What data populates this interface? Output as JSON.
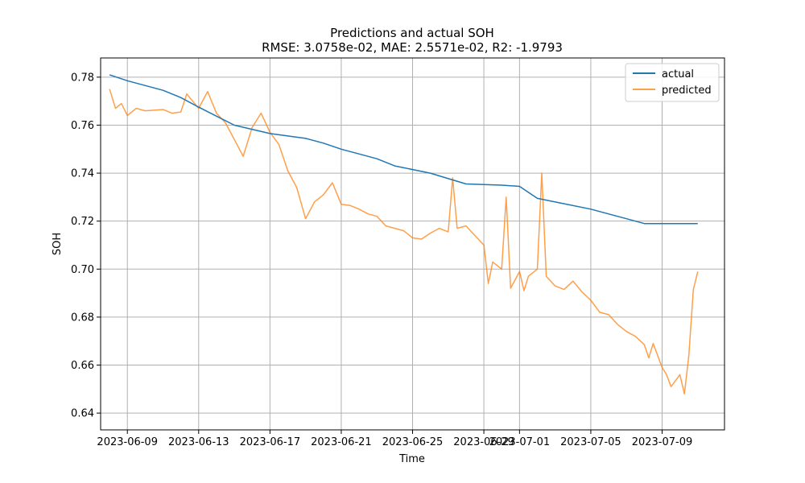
{
  "chart_data": {
    "type": "line",
    "title": "Predictions and actual SOH",
    "subtitle": "RMSE: 3.0758e-02, MAE: 2.5571e-02, R2: -1.9793",
    "xlabel": "Time",
    "ylabel": "SOH",
    "xlim": [
      "2023-06-07T12:00",
      "2023-07-12T12:00"
    ],
    "ylim": [
      0.633,
      0.788
    ],
    "grid": true,
    "legend_position": "top-right",
    "x_ticks": [
      "2023-06-09",
      "2023-06-13",
      "2023-06-17",
      "2023-06-21",
      "2023-06-25",
      "2023-06-29",
      "2023-07-01",
      "2023-07-05",
      "2023-07-09"
    ],
    "y_ticks": [
      "0.64",
      "0.66",
      "0.68",
      "0.70",
      "0.72",
      "0.74",
      "0.76",
      "0.78"
    ],
    "series": [
      {
        "name": "actual",
        "color": "#1f77b4",
        "points": [
          [
            "2023-06-08",
            0.781
          ],
          [
            "2023-06-09",
            0.7785
          ],
          [
            "2023-06-11",
            0.7745
          ],
          [
            "2023-06-12",
            0.7715
          ],
          [
            "2023-06-13",
            0.7675
          ],
          [
            "2023-06-15",
            0.76
          ],
          [
            "2023-06-17",
            0.7565
          ],
          [
            "2023-06-19",
            0.7545
          ],
          [
            "2023-06-20",
            0.7525
          ],
          [
            "2023-06-21",
            0.75
          ],
          [
            "2023-06-23",
            0.746
          ],
          [
            "2023-06-24",
            0.743
          ],
          [
            "2023-06-26",
            0.74
          ],
          [
            "2023-06-28",
            0.7355
          ],
          [
            "2023-06-30",
            0.735
          ],
          [
            "2023-07-01",
            0.7345
          ],
          [
            "2023-07-02",
            0.7295
          ],
          [
            "2023-07-05",
            0.725
          ],
          [
            "2023-07-07",
            0.721
          ],
          [
            "2023-07-08",
            0.719
          ],
          [
            "2023-07-10",
            0.719
          ],
          [
            "2023-07-11",
            0.719
          ]
        ]
      },
      {
        "name": "predicted",
        "color": "#ff7f0e",
        "points": [
          [
            "2023-06-08",
            0.775
          ],
          [
            "2023-06-08T08:00",
            0.767
          ],
          [
            "2023-06-08T16:00",
            0.769
          ],
          [
            "2023-06-09",
            0.764
          ],
          [
            "2023-06-09T12:00",
            0.767
          ],
          [
            "2023-06-10",
            0.766
          ],
          [
            "2023-06-11",
            0.7665
          ],
          [
            "2023-06-11T12:00",
            0.765
          ],
          [
            "2023-06-12",
            0.7655
          ],
          [
            "2023-06-12T08:00",
            0.773
          ],
          [
            "2023-06-12T16:00",
            0.77
          ],
          [
            "2023-06-13",
            0.767
          ],
          [
            "2023-06-13T12:00",
            0.774
          ],
          [
            "2023-06-14",
            0.765
          ],
          [
            "2023-06-14T12:00",
            0.761
          ],
          [
            "2023-06-15",
            0.754
          ],
          [
            "2023-06-15T12:00",
            0.747
          ],
          [
            "2023-06-16",
            0.759
          ],
          [
            "2023-06-16T12:00",
            0.765
          ],
          [
            "2023-06-17",
            0.757
          ],
          [
            "2023-06-17T12:00",
            0.752
          ],
          [
            "2023-06-18",
            0.741
          ],
          [
            "2023-06-18T12:00",
            0.734
          ],
          [
            "2023-06-19",
            0.721
          ],
          [
            "2023-06-19T12:00",
            0.728
          ],
          [
            "2023-06-20",
            0.731
          ],
          [
            "2023-06-20T12:00",
            0.736
          ],
          [
            "2023-06-21",
            0.727
          ],
          [
            "2023-06-21T12:00",
            0.7265
          ],
          [
            "2023-06-22",
            0.725
          ],
          [
            "2023-06-22T12:00",
            0.723
          ],
          [
            "2023-06-23",
            0.722
          ],
          [
            "2023-06-23T12:00",
            0.718
          ],
          [
            "2023-06-24",
            0.717
          ],
          [
            "2023-06-24T12:00",
            0.716
          ],
          [
            "2023-06-25",
            0.713
          ],
          [
            "2023-06-25T12:00",
            0.7125
          ],
          [
            "2023-06-26",
            0.715
          ],
          [
            "2023-06-26T12:00",
            0.717
          ],
          [
            "2023-06-27",
            0.7155
          ],
          [
            "2023-06-27T06:00",
            0.738
          ],
          [
            "2023-06-27T12:00",
            0.717
          ],
          [
            "2023-06-28",
            0.718
          ],
          [
            "2023-06-28T12:00",
            0.714
          ],
          [
            "2023-06-29",
            0.71
          ],
          [
            "2023-06-29T06:00",
            0.694
          ],
          [
            "2023-06-29T12:00",
            0.703
          ],
          [
            "2023-06-30",
            0.7
          ],
          [
            "2023-06-30T06:00",
            0.73
          ],
          [
            "2023-06-30T12:00",
            0.692
          ],
          [
            "2023-07-01",
            0.699
          ],
          [
            "2023-07-01T06:00",
            0.691
          ],
          [
            "2023-07-01T12:00",
            0.697
          ],
          [
            "2023-07-02",
            0.7
          ],
          [
            "2023-07-02T06:00",
            0.74
          ],
          [
            "2023-07-02T12:00",
            0.697
          ],
          [
            "2023-07-03",
            0.693
          ],
          [
            "2023-07-03T12:00",
            0.6915
          ],
          [
            "2023-07-04",
            0.695
          ],
          [
            "2023-07-04T12:00",
            0.6905
          ],
          [
            "2023-07-05",
            0.687
          ],
          [
            "2023-07-05T12:00",
            0.682
          ],
          [
            "2023-07-06",
            0.681
          ],
          [
            "2023-07-06T12:00",
            0.677
          ],
          [
            "2023-07-07",
            0.674
          ],
          [
            "2023-07-07T12:00",
            0.672
          ],
          [
            "2023-07-08",
            0.6685
          ],
          [
            "2023-07-08T06:00",
            0.663
          ],
          [
            "2023-07-08T12:00",
            0.669
          ],
          [
            "2023-07-09",
            0.659
          ],
          [
            "2023-07-09T06:00",
            0.656
          ],
          [
            "2023-07-09T12:00",
            0.651
          ],
          [
            "2023-07-10",
            0.656
          ],
          [
            "2023-07-10T06:00",
            0.648
          ],
          [
            "2023-07-10T12:00",
            0.664
          ],
          [
            "2023-07-10T18:00",
            0.6915
          ],
          [
            "2023-07-11",
            0.699
          ]
        ]
      }
    ]
  }
}
